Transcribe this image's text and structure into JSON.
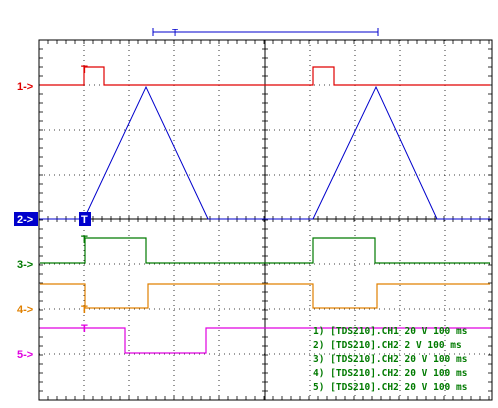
{
  "screen": {
    "trigger_marker": "T",
    "channel_markers": [
      {
        "label": "1->",
        "color": "#e00000"
      },
      {
        "label": "2->",
        "color": "#ffffff",
        "bg": "#0000cc"
      },
      {
        "label": "3->",
        "color": "#007a00"
      },
      {
        "label": "4->",
        "color": "#e08000"
      },
      {
        "label": "5->",
        "color": "#e000e0"
      }
    ],
    "trace_markers": [
      {
        "label": "T",
        "color": "#e00000"
      },
      {
        "label": "T",
        "color": "#ffffff",
        "bg": "#0000cc"
      },
      {
        "label": "T",
        "color": "#007a00"
      },
      {
        "label": "T",
        "color": "#e08000"
      },
      {
        "label": "T",
        "color": "#e000e0"
      }
    ],
    "legend": [
      "1) [TDS210].CH1  20  V    100 ms",
      "2) [TDS210].CH2  2  V    100 ms",
      "3) [TDS210].CH2  20  V    100 ms",
      "4) [TDS210].CH2  20  V    100 ms",
      "5) [TDS210].CH2  20  V    100 ms"
    ],
    "colors": {
      "ch1": "#e00000",
      "ch2": "#0000cc",
      "ch3": "#007a00",
      "ch4": "#e08000",
      "ch5": "#e000e0",
      "grid": "#000000",
      "legend_text": "#007a00"
    }
  }
}
